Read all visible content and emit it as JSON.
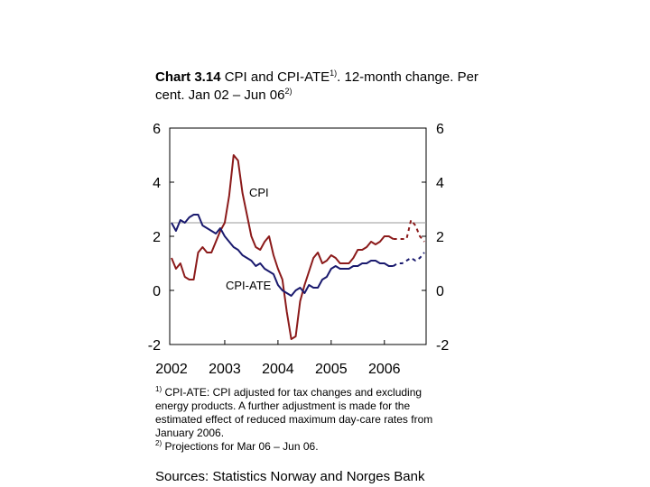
{
  "title": {
    "bold": "Chart 3.14",
    "text1": " CPI and CPI-ATE",
    "sup1": "1)",
    "text2": ". 12-month change. Per cent. Jan 02 – Jun 06",
    "sup2": "2)"
  },
  "notes": {
    "n1_mark": "1)",
    "n1_text": " CPI-ATE: CPI adjusted for tax changes and excluding energy products. A further adjustment is made for the estimated effect of reduced maximum day-care rates from January 2006.",
    "n2_mark": "2)",
    "n2_text": " Projections for Mar 06 – Jun 06."
  },
  "source": "Sources: Statistics Norway and Norges Bank",
  "colors": {
    "cpi": "#8b1a1a",
    "cpi_ate": "#1a1a6e",
    "reference": "#9a9a9a"
  },
  "chart_data": {
    "type": "line",
    "xlim": [
      "2002-01",
      "2006-06"
    ],
    "ylim": [
      -2,
      6
    ],
    "yticks": [
      -2,
      0,
      2,
      4,
      6
    ],
    "xtick_labels": [
      "2002",
      "2003",
      "2004",
      "2005",
      "2006"
    ],
    "reference_line": 2.5,
    "projection_from": "2006-03",
    "series": [
      {
        "name": "CPI",
        "values": [
          1.2,
          0.8,
          1.0,
          0.5,
          0.4,
          0.4,
          1.4,
          1.6,
          1.4,
          1.4,
          1.8,
          2.2,
          2.5,
          3.5,
          5.0,
          4.8,
          3.6,
          2.8,
          2.0,
          1.6,
          1.5,
          1.8,
          2.0,
          1.3,
          0.8,
          0.4,
          -0.8,
          -1.8,
          -1.7,
          -0.4,
          0.2,
          0.7,
          1.2,
          1.4,
          1.0,
          1.1,
          1.3,
          1.2,
          1.0,
          1.0,
          1.0,
          1.2,
          1.5,
          1.5,
          1.6,
          1.8,
          1.7,
          1.8,
          2.0,
          2.0,
          1.9,
          1.9,
          1.9,
          1.9,
          2.6,
          2.4,
          2.0,
          1.8
        ]
      },
      {
        "name": "CPI-ATE",
        "values": [
          2.5,
          2.2,
          2.6,
          2.5,
          2.7,
          2.8,
          2.8,
          2.4,
          2.3,
          2.2,
          2.1,
          2.3,
          2.0,
          1.8,
          1.6,
          1.5,
          1.3,
          1.2,
          1.1,
          0.9,
          1.0,
          0.8,
          0.7,
          0.6,
          0.2,
          0.0,
          -0.1,
          -0.2,
          0.0,
          0.1,
          -0.1,
          0.2,
          0.1,
          0.1,
          0.4,
          0.5,
          0.8,
          0.9,
          0.8,
          0.8,
          0.8,
          0.9,
          0.9,
          1.0,
          1.0,
          1.1,
          1.1,
          1.0,
          1.0,
          0.9,
          0.9,
          1.0,
          1.0,
          1.1,
          1.2,
          1.1,
          1.2,
          1.4
        ]
      }
    ]
  }
}
